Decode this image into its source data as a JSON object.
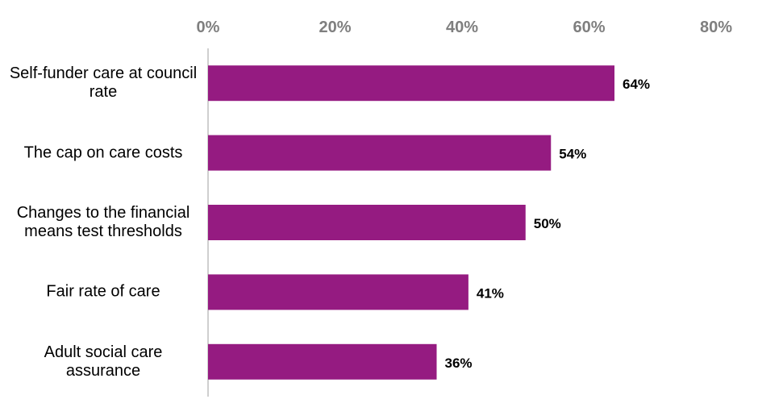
{
  "chart_data": {
    "type": "bar",
    "orientation": "horizontal",
    "categories": [
      "Self-funder care at council rate",
      "The cap on care costs",
      "Changes to the financial means test thresholds",
      "Fair rate of care",
      "Adult social care assurance"
    ],
    "values": [
      64,
      54,
      50,
      41,
      36
    ],
    "value_labels": [
      "64%",
      "54%",
      "50%",
      "41%",
      "36%"
    ],
    "color": "#951b81",
    "xlim": [
      0,
      80
    ],
    "xticks": [
      {
        "value": 0,
        "label": "0%"
      },
      {
        "value": 20,
        "label": "20%"
      },
      {
        "value": 40,
        "label": "40%"
      },
      {
        "value": 60,
        "label": "60%"
      },
      {
        "value": 80,
        "label": "80%"
      }
    ],
    "grid": false
  }
}
